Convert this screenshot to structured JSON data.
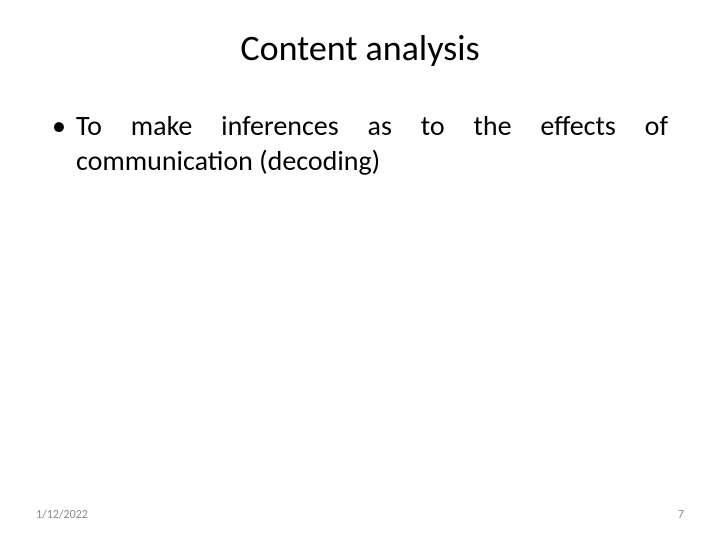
{
  "slide": {
    "title": "Content analysis",
    "bullet": {
      "marker": "•",
      "text": "To make inferences as to the effects of communication (decoding)"
    },
    "footer": {
      "date": "1/12/2022",
      "page": "7"
    },
    "style": {
      "title_fontsize": 36,
      "bullet_fontsize": 28,
      "footer_fontsize": 12,
      "background_color": "#ffffff",
      "text_color": "#000000",
      "footer_color": "#8c8c8c",
      "font_family": "Calibri, Segoe UI, Arial, sans-serif"
    }
  }
}
